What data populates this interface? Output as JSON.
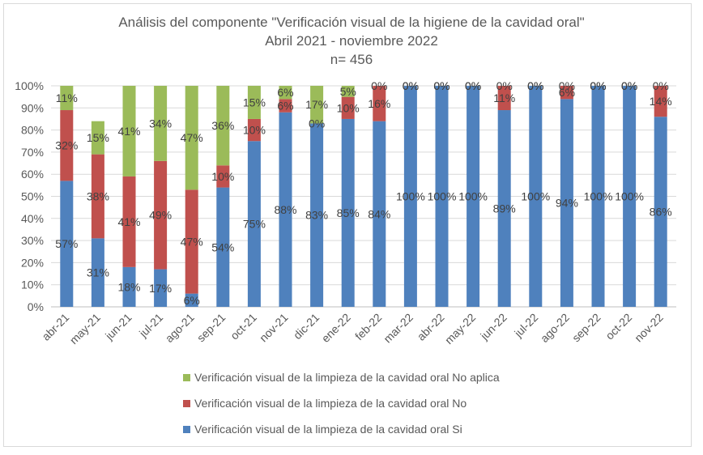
{
  "chart_data": {
    "type": "bar",
    "stacked": true,
    "percent_stacked": true,
    "title_lines": [
      "Análisis del componente \"Verificación visual de la higiene de la cavidad oral\"",
      "Abril 2021 - noviembre 2022",
      "n= 456"
    ],
    "categories": [
      "abr-21",
      "may-21",
      "jun-21",
      "jul-21",
      "ago-21",
      "sep-21",
      "oct-21",
      "nov-21",
      "dic-21",
      "ene-22",
      "feb-22",
      "mar-22",
      "abr-22",
      "may-22",
      "jun-22",
      "jul-22",
      "ago-22",
      "sep-22",
      "oct-22",
      "nov-22"
    ],
    "y_ticks": [
      "0%",
      "10%",
      "20%",
      "30%",
      "40%",
      "50%",
      "60%",
      "70%",
      "80%",
      "90%",
      "100%"
    ],
    "ylim": [
      0,
      100
    ],
    "grid": true,
    "legend_position": "bottom",
    "series": [
      {
        "name": "Verificación visual de la limpieza de la cavidad oral Si",
        "color": "#4f81bd",
        "values": [
          57,
          31,
          18,
          17,
          6,
          54,
          75,
          88,
          83,
          85,
          84,
          100,
          100,
          100,
          89,
          100,
          94,
          100,
          100,
          86
        ],
        "labels": [
          "57%",
          "31%",
          "18%",
          "17%",
          "6%",
          "54%",
          "75%",
          "88%",
          "83%",
          "85%",
          "84%",
          "100%",
          "100%",
          "100%",
          "89%",
          "100%",
          "94%",
          "100%",
          "100%",
          "86%"
        ]
      },
      {
        "name": "Verificación visual de la limpieza de la cavidad oral No",
        "color": "#c0504d",
        "values": [
          32,
          38,
          41,
          49,
          47,
          10,
          10,
          6,
          0,
          10,
          16,
          0,
          0,
          0,
          11,
          0,
          6,
          0,
          0,
          14
        ],
        "labels": [
          "32%",
          "38%",
          "41%",
          "49%",
          "47%",
          "10%",
          "10%",
          "6%",
          "0%",
          "10%",
          "16%",
          "0%",
          "0%",
          "0%",
          "11%",
          "0%",
          "6%",
          "0%",
          "0%",
          "14%"
        ]
      },
      {
        "name": "Verificación visual de la limpieza de la cavidad oral No aplica",
        "color": "#9bbb59",
        "values": [
          11,
          15,
          41,
          34,
          47,
          36,
          15,
          6,
          17,
          5,
          0,
          0,
          0,
          0,
          0,
          0,
          0,
          0,
          0,
          0
        ],
        "labels": [
          "11%",
          "15%",
          "41%",
          "34%",
          "47%",
          "36%",
          "15%",
          "6%",
          "17%",
          "5%",
          "0%",
          "0%",
          "0%",
          "0%",
          "0%",
          "0%",
          "0%",
          "0%",
          "0%",
          "0%"
        ]
      }
    ],
    "legend_order": [
      2,
      1,
      0
    ]
  }
}
